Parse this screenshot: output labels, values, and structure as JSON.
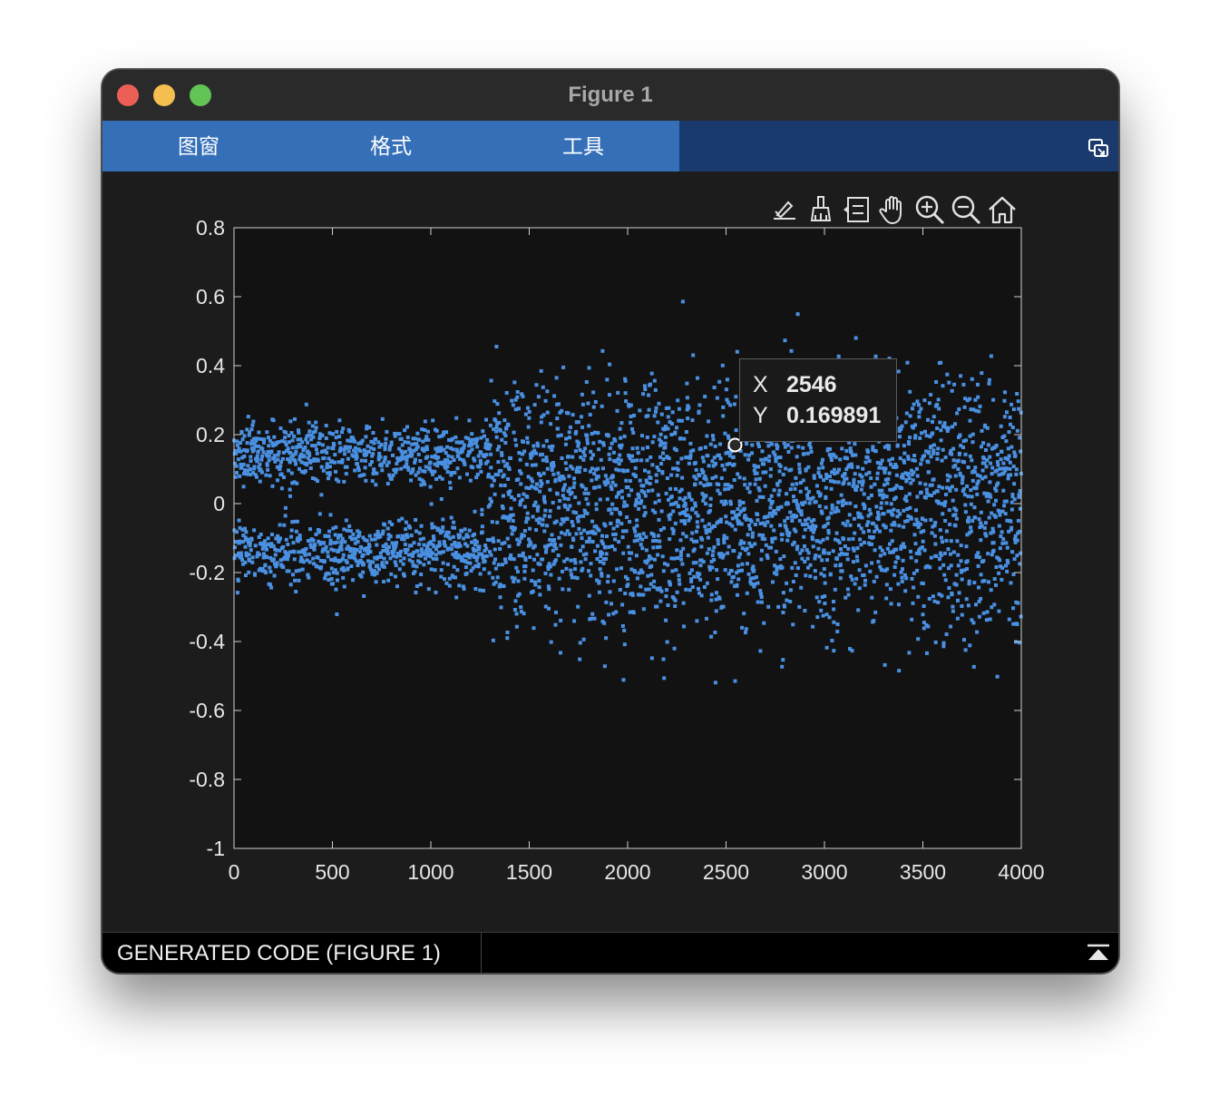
{
  "window": {
    "title": "Figure 1"
  },
  "toolstrip": {
    "tabs": [
      "图窗",
      "格式",
      "工具"
    ]
  },
  "axes_toolbar": [
    "brush-export-icon",
    "brush-icon",
    "data-tips-icon",
    "pan-hand-icon",
    "zoom-in-icon",
    "zoom-out-icon",
    "home-icon"
  ],
  "chart_data": {
    "type": "scatter",
    "xlim": [
      0,
      4000
    ],
    "ylim": [
      -1,
      0.8
    ],
    "xticks": [
      "0",
      "500",
      "1000",
      "1500",
      "2000",
      "2500",
      "3000",
      "3500",
      "4000"
    ],
    "yticks": [
      "0.8",
      "0.6",
      "0.4",
      "0.2",
      "0",
      "-0.2",
      "-0.4",
      "-0.6",
      "-0.8",
      "-1"
    ],
    "marker_color": "#4a90e2",
    "background": "#121212",
    "point_count": 4000,
    "distribution": {
      "description_note": "",
      "bands": [
        {
          "center": 0.14,
          "from_x": 0,
          "to_x": 1300,
          "spread": 0.05
        },
        {
          "center": -0.14,
          "from_x": 0,
          "to_x": 1300,
          "spread": 0.05
        },
        {
          "center": 0.12,
          "from_x": 1300,
          "to_x": 4000,
          "spread": 0.13
        },
        {
          "center": -0.12,
          "from_x": 1300,
          "to_x": 4000,
          "spread": 0.13
        }
      ]
    },
    "highlight": {
      "x": 2546,
      "y": 0.169891
    }
  },
  "datatip": {
    "x_label": "X",
    "x_value": "2546",
    "y_label": "Y",
    "y_value": "0.169891"
  },
  "statusbar": {
    "generated_code": "GENERATED CODE (FIGURE 1)"
  }
}
